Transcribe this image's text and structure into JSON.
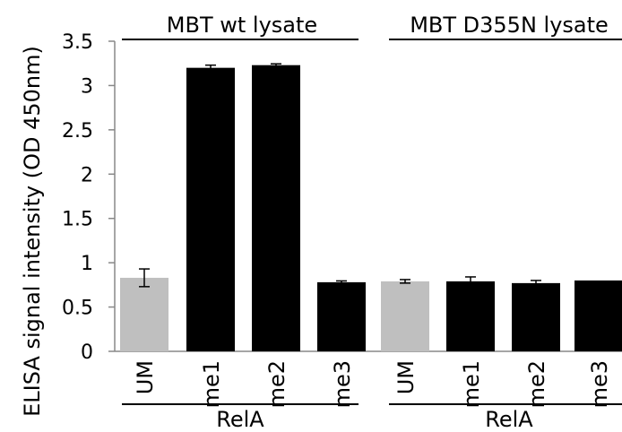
{
  "chart_data": {
    "type": "bar",
    "title": "",
    "xlabel": "",
    "ylabel": "ELISA signal intensity (OD 450nm)",
    "ylim": [
      0,
      3.5
    ],
    "y_ticks": [
      "0",
      "0.5",
      "1",
      "1.5",
      "2",
      "2.5",
      "3",
      "3.5"
    ],
    "grid": false,
    "categories": [
      "UM",
      "me1",
      "me2",
      "me3",
      "UM",
      "me1",
      "me2",
      "me3"
    ],
    "values": [
      0.83,
      3.2,
      3.23,
      0.78,
      0.79,
      0.79,
      0.77,
      0.8
    ],
    "errors": [
      0.1,
      0.03,
      0.015,
      0.015,
      0.02,
      0.05,
      0.03,
      0.0
    ],
    "bar_colors": [
      "#bfbfbf",
      "#000000",
      "#000000",
      "#000000",
      "#bfbfbf",
      "#000000",
      "#000000",
      "#000000"
    ],
    "group_labels_top": [
      "MBT wt lysate",
      "MBT D355N lysate"
    ],
    "group_labels_bottom": [
      "RelA",
      "RelA"
    ]
  }
}
